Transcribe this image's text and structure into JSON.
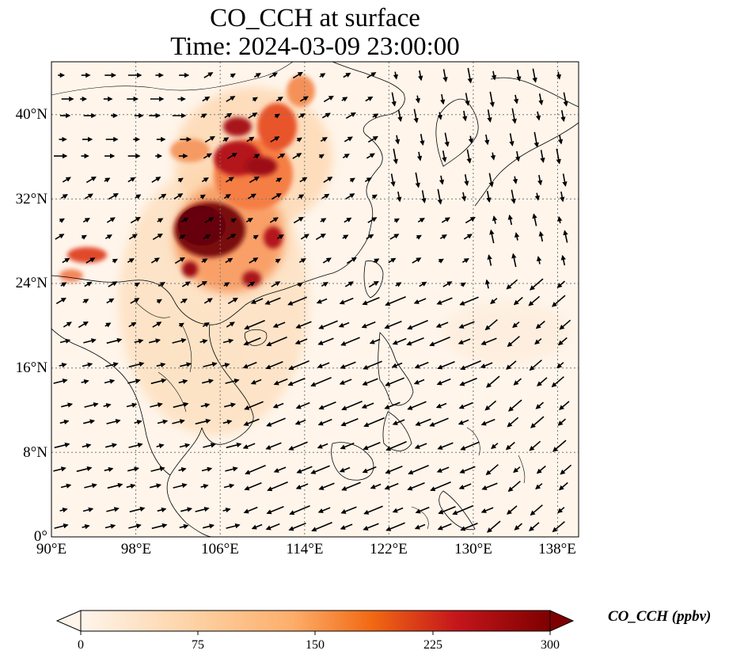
{
  "title": "CO_CCH at surface",
  "subtitle": "Time: 2024-03-09 23:00:00",
  "map": {
    "lon_range": [
      90,
      140
    ],
    "lat_range": [
      0,
      45
    ],
    "lon_ticks": [
      {
        "value": 90,
        "label": "90°E"
      },
      {
        "value": 98,
        "label": "98°E"
      },
      {
        "value": 106,
        "label": "106°E"
      },
      {
        "value": 114,
        "label": "114°E"
      },
      {
        "value": 122,
        "label": "122°E"
      },
      {
        "value": 130,
        "label": "130°E"
      },
      {
        "value": 138,
        "label": "138°E"
      }
    ],
    "lat_ticks": [
      {
        "value": 0,
        "label": "0°"
      },
      {
        "value": 8,
        "label": "8°N"
      },
      {
        "value": 16,
        "label": "16°N"
      },
      {
        "value": 24,
        "label": "24°N"
      },
      {
        "value": 32,
        "label": "32°N"
      },
      {
        "value": 40,
        "label": "40°N"
      }
    ],
    "gridlines": true
  },
  "colorbar": {
    "label": "CO_CCH (ppbv)",
    "ticks": [
      0,
      75,
      150,
      225,
      300
    ],
    "tick_labels": [
      "0",
      "75",
      "150",
      "225",
      "300"
    ],
    "range": [
      0,
      300
    ],
    "colors": [
      "#fff5eb",
      "#fdd0a2",
      "#fdae6b",
      "#f16913",
      "#d94801",
      "#a50f15",
      "#67000d"
    ],
    "extend": "both"
  }
}
